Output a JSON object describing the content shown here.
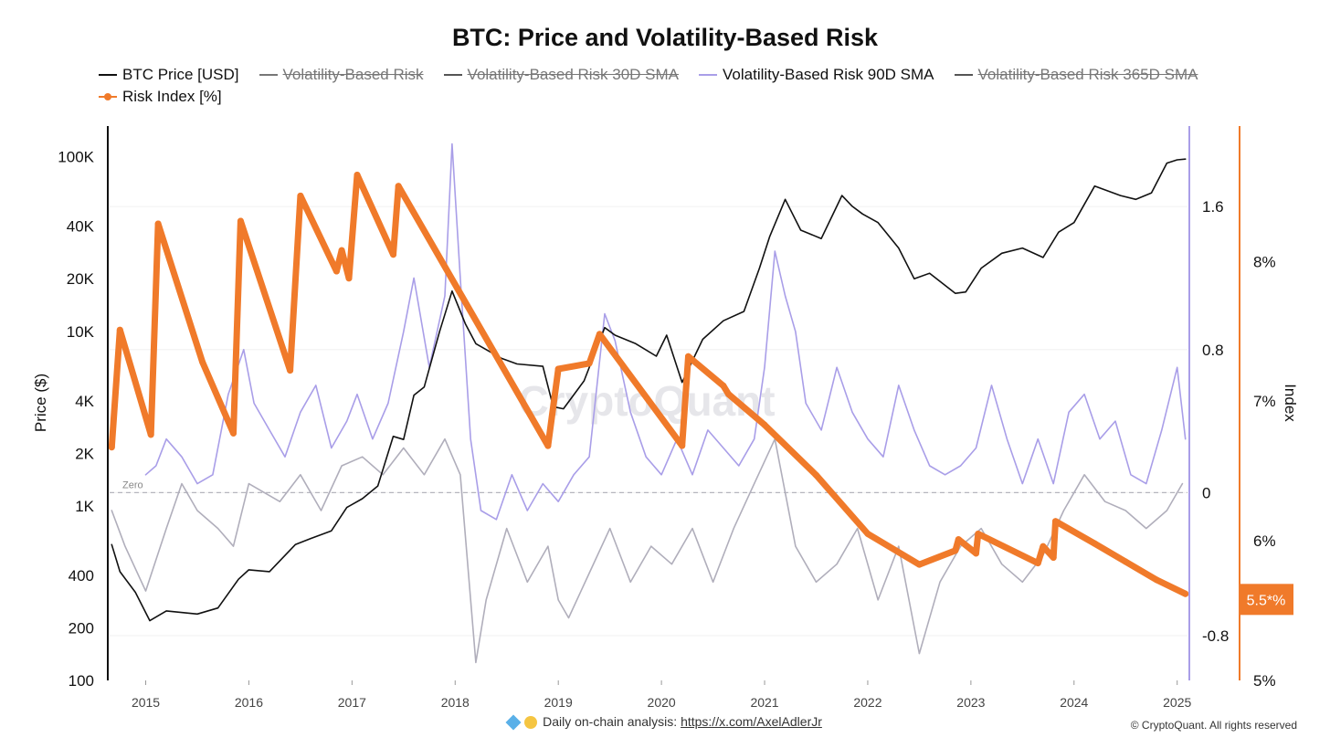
{
  "header": {
    "title": "BTC: Price and Volatility-Based Risk"
  },
  "legend": {
    "items": [
      {
        "label": "BTC Price [USD]",
        "color": "#111111",
        "active": true
      },
      {
        "label": "Volatility-Based Risk",
        "color": "#777777",
        "active": false
      },
      {
        "label": "Volatility-Based Risk 30D SMA",
        "color": "#555555",
        "active": false
      },
      {
        "label": "Volatility-Based Risk 90D SMA",
        "color": "#a99ee8",
        "active": true
      },
      {
        "label": "Volatility-Based Risk 365D SMA",
        "color": "#555555",
        "active": false
      },
      {
        "label": "Risk Index [%]",
        "color": "#f07a2a",
        "active": true,
        "marker": "dot"
      }
    ]
  },
  "footer": {
    "text": "Daily on-chain analysis: ",
    "link": "https://x.com/AxelAdlerJr",
    "copyright": "© CryptoQuant. All rights reserved",
    "watermark": "CryptoQuant"
  },
  "chart_data": {
    "type": "line",
    "title": "BTC: Price and Volatility-Based Risk",
    "xlabel": "",
    "colors": {
      "price": "#111111",
      "risk": "#b0aebb",
      "risk90": "#a99ee8",
      "index": "#f07a2a"
    },
    "x_ticks": [
      "2015",
      "2016",
      "2017",
      "2018",
      "2019",
      "2020",
      "2021",
      "2022",
      "2023",
      "2024",
      "2025"
    ],
    "xlim": [
      2014.65,
      2025.1
    ],
    "axes": {
      "price": {
        "label": "Price ($)",
        "scale": "log",
        "ylim": [
          100,
          150000
        ],
        "ticks": [
          100,
          200,
          400,
          1000,
          2000,
          4000,
          10000,
          20000,
          40000,
          100000
        ],
        "tick_labels": [
          "100",
          "200",
          "400",
          "1K",
          "2K",
          "4K",
          "10K",
          "20K",
          "40K",
          "100K"
        ]
      },
      "risk": {
        "label": "",
        "ylim": [
          -1.05,
          2.05
        ],
        "ticks": [
          -0.8,
          0,
          0.8,
          1.6
        ],
        "tick_labels": [
          "-0.8",
          "0",
          "0.8",
          "1.6"
        ],
        "zero_line_label": "Zero"
      },
      "index": {
        "label": "Index",
        "ylim": [
          5.0,
          8.97
        ],
        "ticks": [
          5,
          6,
          7,
          8
        ],
        "tick_labels": [
          "5%",
          "6%",
          "7%",
          "8%"
        ],
        "current_value_label": "5.5*%",
        "current_value": 5.58
      }
    },
    "series": [
      {
        "name": "BTC Price [USD]",
        "axis": "price",
        "style": "line",
        "x": [
          2014.67,
          2014.75,
          2014.9,
          2015.04,
          2015.2,
          2015.5,
          2015.7,
          2015.9,
          2016.0,
          2016.2,
          2016.45,
          2016.6,
          2016.8,
          2016.95,
          2017.1,
          2017.25,
          2017.4,
          2017.5,
          2017.6,
          2017.7,
          2017.85,
          2017.97,
          2018.1,
          2018.2,
          2018.45,
          2018.6,
          2018.85,
          2018.95,
          2019.05,
          2019.25,
          2019.45,
          2019.55,
          2019.75,
          2019.95,
          2020.05,
          2020.2,
          2020.4,
          2020.6,
          2020.8,
          2020.95,
          2021.05,
          2021.2,
          2021.35,
          2021.55,
          2021.75,
          2021.85,
          2021.95,
          2022.1,
          2022.3,
          2022.45,
          2022.6,
          2022.85,
          2022.95,
          2023.1,
          2023.3,
          2023.5,
          2023.7,
          2023.85,
          2024.0,
          2024.2,
          2024.45,
          2024.6,
          2024.75,
          2024.9,
          2025.0,
          2025.08
        ],
        "values": [
          600,
          420,
          320,
          220,
          250,
          240,
          260,
          380,
          430,
          420,
          600,
          650,
          720,
          980,
          1100,
          1300,
          2500,
          2400,
          4300,
          4800,
          10000,
          17000,
          11000,
          8500,
          7000,
          6500,
          6300,
          3700,
          3600,
          5200,
          10500,
          9500,
          8500,
          7200,
          9500,
          5100,
          9000,
          11500,
          13000,
          23000,
          35000,
          57000,
          38000,
          34000,
          60000,
          52000,
          47000,
          42000,
          30000,
          20000,
          21500,
          16500,
          16800,
          23000,
          28000,
          30000,
          26500,
          37000,
          42000,
          68000,
          60000,
          57000,
          62000,
          92000,
          96000,
          97000
        ]
      },
      {
        "name": "Volatility-Based Risk",
        "axis": "risk",
        "style": "line",
        "x": [
          2014.67,
          2014.8,
          2015.0,
          2015.2,
          2015.35,
          2015.5,
          2015.7,
          2015.85,
          2016.0,
          2016.3,
          2016.5,
          2016.7,
          2016.9,
          2017.1,
          2017.3,
          2017.5,
          2017.7,
          2017.9,
          2018.05,
          2018.2,
          2018.3,
          2018.5,
          2018.7,
          2018.9,
          2019.0,
          2019.1,
          2019.3,
          2019.5,
          2019.7,
          2019.9,
          2020.1,
          2020.3,
          2020.5,
          2020.7,
          2020.9,
          2021.1,
          2021.3,
          2021.5,
          2021.7,
          2021.9,
          2022.1,
          2022.3,
          2022.5,
          2022.7,
          2022.9,
          2023.1,
          2023.3,
          2023.5,
          2023.7,
          2023.9,
          2024.1,
          2024.3,
          2024.5,
          2024.7,
          2024.9,
          2025.05
        ],
        "values": [
          -0.1,
          -0.3,
          -0.55,
          -0.2,
          0.05,
          -0.1,
          -0.2,
          -0.3,
          0.05,
          -0.05,
          0.1,
          -0.1,
          0.15,
          0.2,
          0.1,
          0.25,
          0.1,
          0.3,
          0.1,
          -0.95,
          -0.6,
          -0.2,
          -0.5,
          -0.3,
          -0.6,
          -0.7,
          -0.45,
          -0.2,
          -0.5,
          -0.3,
          -0.4,
          -0.2,
          -0.5,
          -0.2,
          0.05,
          0.3,
          -0.3,
          -0.5,
          -0.4,
          -0.2,
          -0.6,
          -0.3,
          -0.9,
          -0.5,
          -0.3,
          -0.2,
          -0.4,
          -0.5,
          -0.35,
          -0.1,
          0.1,
          -0.05,
          -0.1,
          -0.2,
          -0.1,
          0.05
        ]
      },
      {
        "name": "Volatility-Based Risk 90D SMA",
        "axis": "risk",
        "style": "line",
        "x": [
          2015.0,
          2015.1,
          2015.2,
          2015.35,
          2015.5,
          2015.65,
          2015.8,
          2015.95,
          2016.05,
          2016.2,
          2016.35,
          2016.5,
          2016.65,
          2016.8,
          2016.95,
          2017.05,
          2017.2,
          2017.35,
          2017.5,
          2017.6,
          2017.75,
          2017.9,
          2017.97,
          2018.05,
          2018.15,
          2018.25,
          2018.4,
          2018.55,
          2018.7,
          2018.85,
          2019.0,
          2019.15,
          2019.3,
          2019.45,
          2019.55,
          2019.7,
          2019.85,
          2020.0,
          2020.15,
          2020.3,
          2020.45,
          2020.6,
          2020.75,
          2020.9,
          2021.0,
          2021.1,
          2021.2,
          2021.3,
          2021.4,
          2021.55,
          2021.7,
          2021.85,
          2022.0,
          2022.15,
          2022.3,
          2022.45,
          2022.6,
          2022.75,
          2022.9,
          2023.05,
          2023.2,
          2023.35,
          2023.5,
          2023.65,
          2023.8,
          2023.95,
          2024.1,
          2024.25,
          2024.4,
          2024.55,
          2024.7,
          2024.85,
          2025.0,
          2025.08
        ],
        "values": [
          0.1,
          0.15,
          0.3,
          0.2,
          0.05,
          0.1,
          0.55,
          0.8,
          0.5,
          0.35,
          0.2,
          0.45,
          0.6,
          0.25,
          0.4,
          0.55,
          0.3,
          0.5,
          0.9,
          1.2,
          0.7,
          1.1,
          1.95,
          1.2,
          0.3,
          -0.1,
          -0.15,
          0.1,
          -0.1,
          0.05,
          -0.05,
          0.1,
          0.2,
          1.0,
          0.85,
          0.45,
          0.2,
          0.1,
          0.3,
          0.1,
          0.35,
          0.25,
          0.15,
          0.3,
          0.7,
          1.35,
          1.1,
          0.9,
          0.5,
          0.35,
          0.7,
          0.45,
          0.3,
          0.2,
          0.6,
          0.35,
          0.15,
          0.1,
          0.15,
          0.25,
          0.6,
          0.3,
          0.05,
          0.3,
          0.05,
          0.45,
          0.55,
          0.3,
          0.4,
          0.1,
          0.05,
          0.35,
          0.7,
          0.3
        ]
      },
      {
        "name": "Risk Index [%]",
        "axis": "index",
        "style": "line-dots",
        "x": [
          2014.67,
          2014.75,
          2015.05,
          2015.12,
          2015.55,
          2015.85,
          2015.92,
          2016.4,
          2016.5,
          2016.85,
          2016.9,
          2016.97,
          2017.05,
          2017.4,
          2017.45,
          2018.9,
          2019.0,
          2019.3,
          2019.4,
          2020.2,
          2020.26,
          2020.6,
          2020.65,
          2021.0,
          2021.5,
          2022.0,
          2022.5,
          2022.85,
          2022.88,
          2023.05,
          2023.07,
          2023.65,
          2023.7,
          2023.8,
          2023.82,
          2024.2,
          2024.5,
          2024.8,
          2025.08
        ],
        "values": [
          6.67,
          7.51,
          6.76,
          8.27,
          7.28,
          6.77,
          8.29,
          7.22,
          8.47,
          7.93,
          8.08,
          7.88,
          8.62,
          8.05,
          8.54,
          6.68,
          7.23,
          7.27,
          7.48,
          6.68,
          7.32,
          7.11,
          7.05,
          6.83,
          6.47,
          6.05,
          5.83,
          5.93,
          6.01,
          5.91,
          6.05,
          5.84,
          5.96,
          5.88,
          6.14,
          5.98,
          5.85,
          5.72,
          5.62
        ]
      }
    ]
  }
}
